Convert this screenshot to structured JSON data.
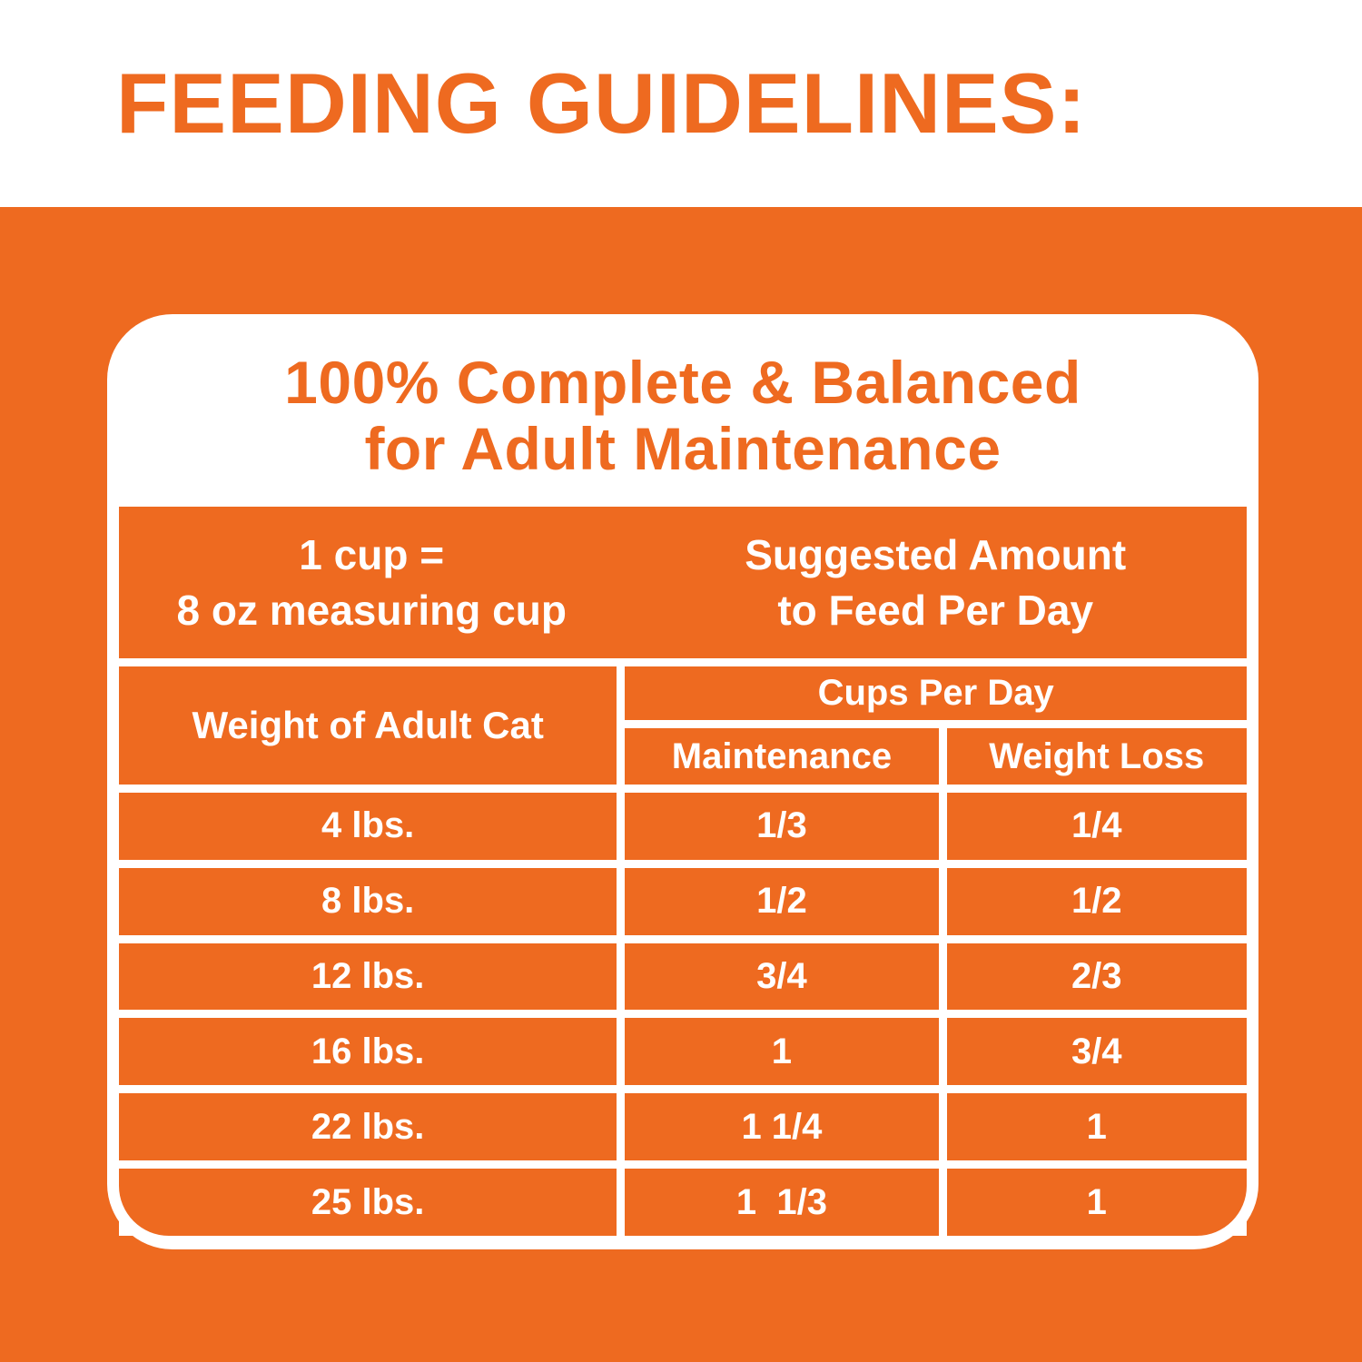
{
  "page_title": "FEEDING GUIDELINES:",
  "colors": {
    "orange": "#EE6A20",
    "white": "#FFFFFF"
  },
  "card": {
    "heading_line1": "100% Complete & Balanced",
    "heading_line2": "for Adult Maintenance"
  },
  "table": {
    "header_left_line1": "1 cup =",
    "header_left_line2": "8 oz measuring cup",
    "header_right_line1": "Suggested Amount",
    "header_right_line2": "to Feed Per Day",
    "weight_column_header": "Weight of Adult Cat",
    "group_header": "Cups Per Day",
    "maintenance_header": "Maintenance",
    "weight_loss_header": "Weight Loss",
    "rows": [
      {
        "weight": "4 lbs.",
        "maintenance": "1/3",
        "weight_loss": "1/4"
      },
      {
        "weight": "8 lbs.",
        "maintenance": "1/2",
        "weight_loss": "1/2"
      },
      {
        "weight": "12 lbs.",
        "maintenance": "3/4",
        "weight_loss": "2/3"
      },
      {
        "weight": "16 lbs.",
        "maintenance": "1",
        "weight_loss": "3/4"
      },
      {
        "weight": "22 lbs.",
        "maintenance": "1 1/4",
        "weight_loss": "1"
      },
      {
        "weight": "25 lbs.",
        "maintenance": "1  1/3",
        "weight_loss": "1"
      }
    ]
  }
}
